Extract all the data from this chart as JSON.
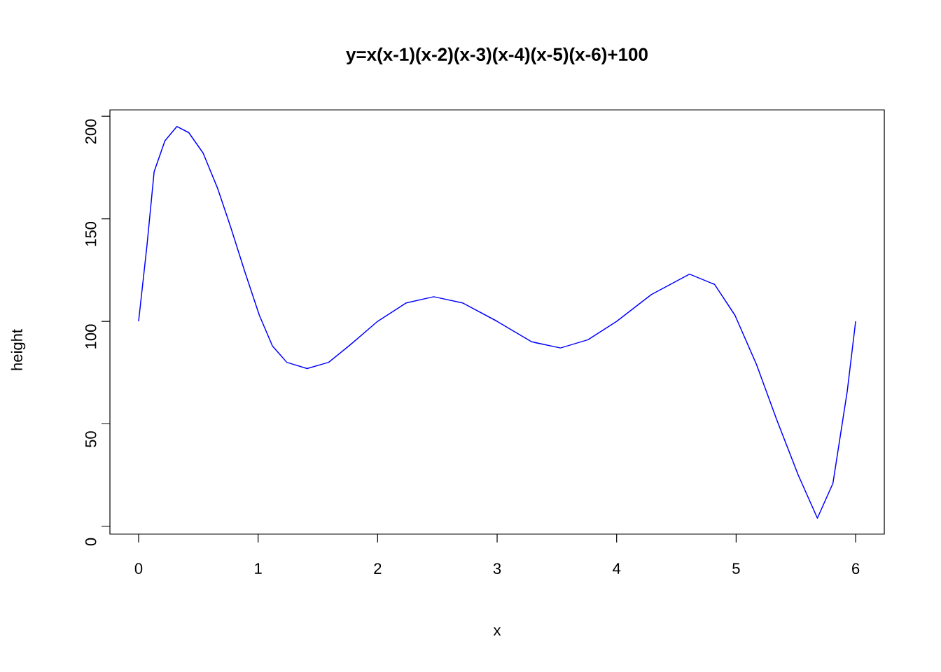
{
  "chart_data": {
    "type": "line",
    "title": "y=x(x-1)(x-2)(x-3)(x-4)(x-5)(x-6)+100",
    "xlabel": "x",
    "ylabel": "height",
    "x": [
      0,
      0.07,
      0.13,
      0.22,
      0.32,
      0.42,
      0.54,
      0.66,
      0.77,
      0.89,
      1.01,
      1.12,
      1.24,
      1.41,
      1.59,
      1.76,
      2.0,
      2.24,
      2.47,
      2.71,
      3.0,
      3.29,
      3.53,
      3.76,
      4.0,
      4.29,
      4.61,
      4.82,
      4.99,
      5.17,
      5.34,
      5.52,
      5.68,
      5.81,
      5.93,
      6
    ],
    "series": [
      {
        "color": "#0000ff",
        "values": [
          100,
          137,
          173,
          188,
          195,
          192,
          182,
          165,
          146,
          124,
          103,
          88,
          80,
          77,
          80,
          88,
          100,
          109,
          112,
          109,
          100,
          90,
          87,
          91,
          100,
          113,
          123,
          118,
          103,
          79,
          52,
          25,
          4,
          21,
          66,
          100
        ]
      }
    ],
    "xlim": [
      -0.24,
      6.24
    ],
    "ylim": [
      -3.75,
      203.1
    ],
    "xticks": [
      0,
      1,
      2,
      3,
      4,
      5,
      6
    ],
    "yticks": [
      0,
      50,
      100,
      150,
      200
    ],
    "line_style": "solid"
  }
}
